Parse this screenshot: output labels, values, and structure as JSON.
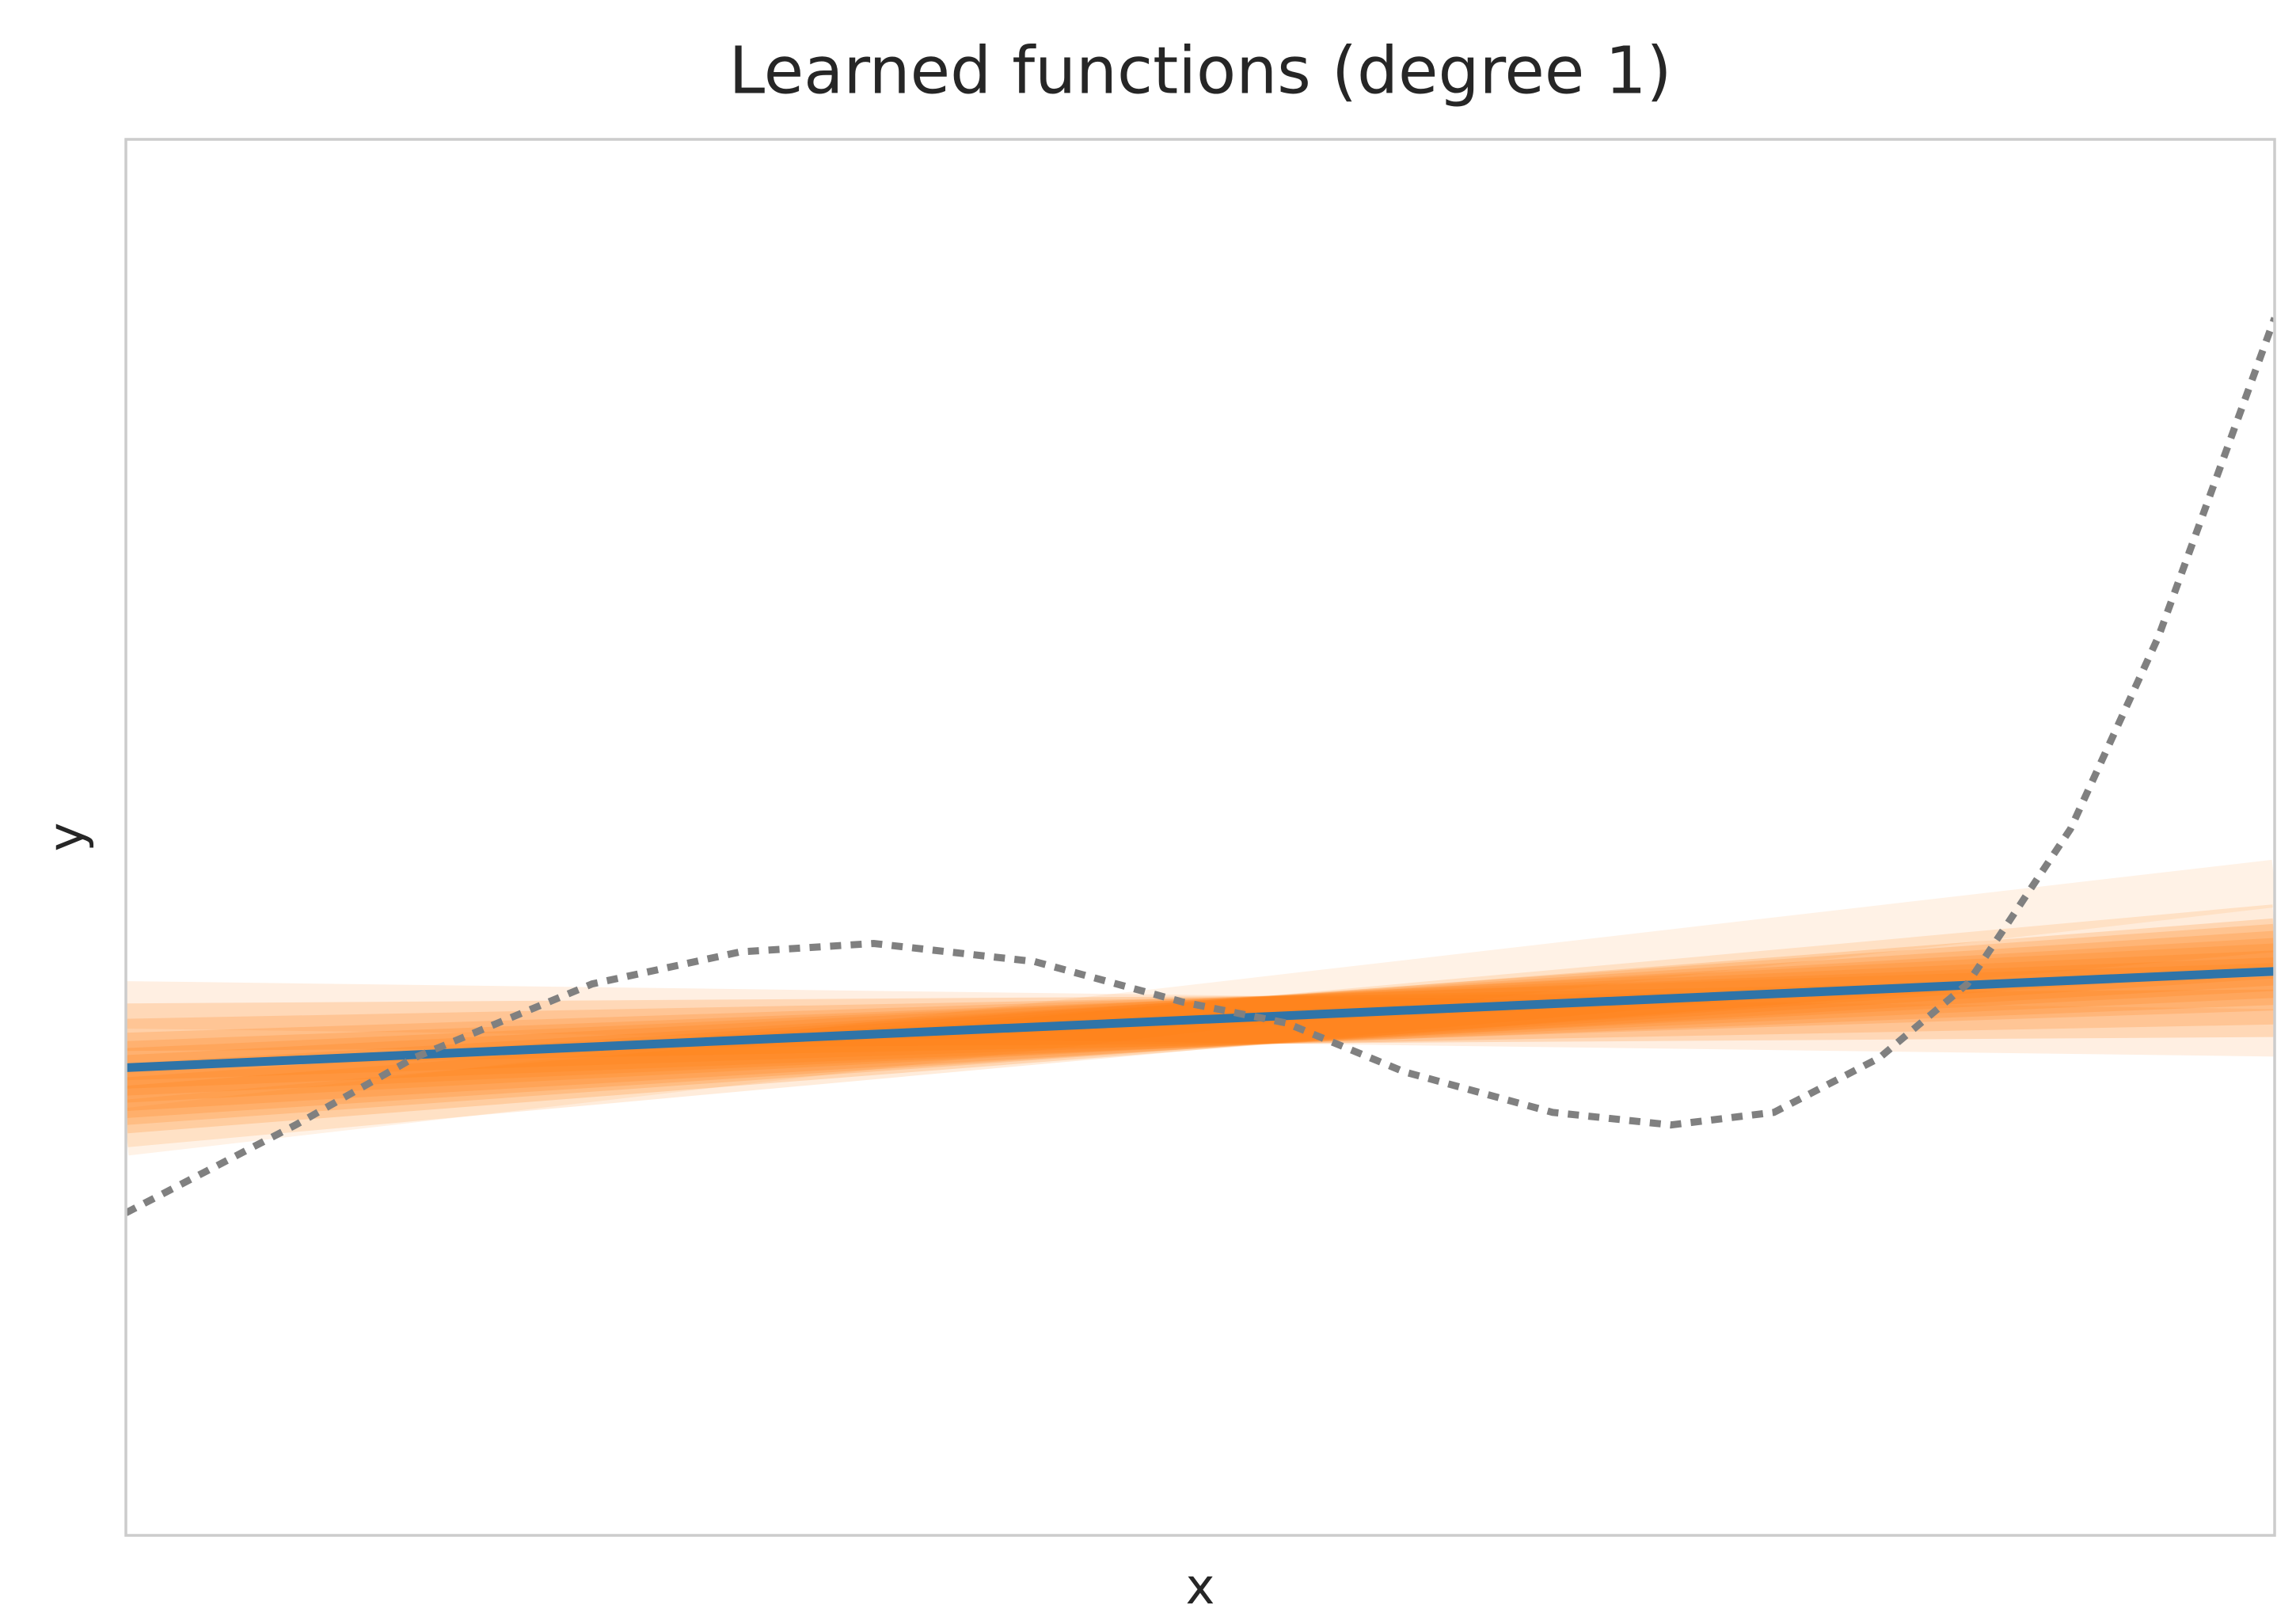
{
  "chart_data": {
    "type": "line",
    "title": "Learned functions (degree 1)",
    "xlabel": "x",
    "ylabel": "y",
    "xlim": [
      0,
      1
    ],
    "ylim": [
      0,
      1
    ],
    "series": [
      {
        "color": "#ff7f0e",
        "alpha": 0.12,
        "x": [
          0,
          1
        ],
        "values": [
          0.38,
          0.36
        ]
      },
      {
        "color": "#ff7f0e",
        "alpha": 0.2,
        "x": [
          0,
          1
        ],
        "values": [
          0.364,
          0.374
        ]
      },
      {
        "color": "#ff7f0e",
        "alpha": 0.2,
        "x": [
          0,
          1
        ],
        "values": [
          0.353,
          0.383
        ]
      },
      {
        "color": "#ff7f0e",
        "alpha": 0.2,
        "x": [
          0,
          1
        ],
        "values": [
          0.343,
          0.393
        ]
      },
      {
        "color": "#ff7f0e",
        "alpha": 0.2,
        "x": [
          0,
          1
        ],
        "values": [
          0.337,
          0.397
        ]
      },
      {
        "color": "#ff7f0e",
        "alpha": 0.2,
        "x": [
          0,
          1
        ],
        "values": [
          0.332,
          0.402
        ]
      },
      {
        "color": "#ff7f0e",
        "alpha": 0.2,
        "x": [
          0,
          1
        ],
        "values": [
          0.327,
          0.407
        ]
      },
      {
        "color": "#ff7f0e",
        "alpha": 0.2,
        "x": [
          0,
          1
        ],
        "values": [
          0.321,
          0.411
        ]
      },
      {
        "color": "#ff7f0e",
        "alpha": 0.2,
        "x": [
          0,
          1
        ],
        "values": [
          0.316,
          0.416
        ]
      },
      {
        "color": "#ff7f0e",
        "alpha": 0.2,
        "x": [
          0,
          1
        ],
        "values": [
          0.311,
          0.421
        ]
      },
      {
        "color": "#ff7f0e",
        "alpha": 0.2,
        "x": [
          0,
          1
        ],
        "values": [
          0.305,
          0.425
        ]
      },
      {
        "color": "#ff7f0e",
        "alpha": 0.15,
        "x": [
          0,
          1
        ],
        "values": [
          0.295,
          0.435
        ]
      },
      {
        "color": "#ff7f0e",
        "alpha": 0.1,
        "x": [
          0,
          1
        ],
        "values": [
          0.289,
          0.467
        ]
      },
      {
        "color": "#2f74a8",
        "alpha": 1,
        "x": [
          0,
          1
        ],
        "values": [
          0.335,
          0.404
        ]
      },
      {
        "color": "#808080",
        "alpha": 1,
        "dash": "dotted",
        "x": [
          0,
          0.079,
          0.134,
          0.217,
          0.286,
          0.348,
          0.423,
          0.492,
          0.54,
          0.595,
          0.664,
          0.719,
          0.767,
          0.816,
          0.857,
          0.905,
          0.946,
          1
        ],
        "values": [
          0.231,
          0.294,
          0.342,
          0.395,
          0.418,
          0.424,
          0.411,
          0.382,
          0.367,
          0.332,
          0.303,
          0.294,
          0.303,
          0.342,
          0.395,
          0.506,
          0.644,
          0.872
        ]
      }
    ]
  }
}
